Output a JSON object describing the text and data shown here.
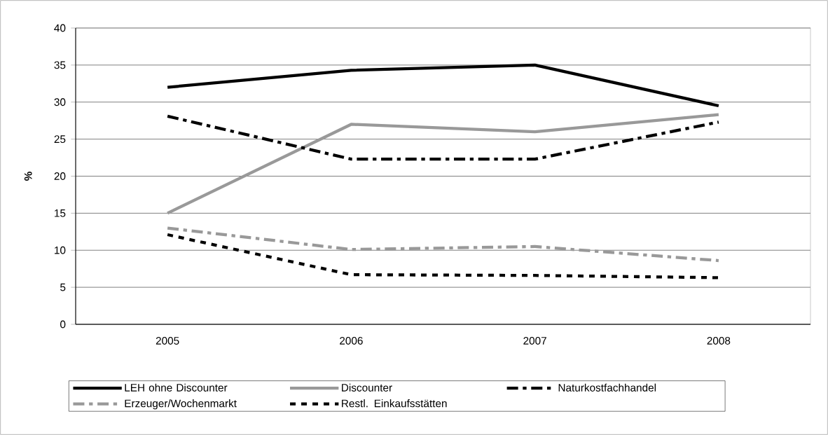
{
  "chart_data": {
    "type": "line",
    "ylabel": "%",
    "categories": [
      "2005",
      "2006",
      "2007",
      "2008"
    ],
    "series": [
      {
        "name": "LEH ohne Discounter",
        "color": "#000000",
        "line_style": "solid",
        "values": [
          32,
          34.3,
          35,
          29.5
        ]
      },
      {
        "name": "Discounter",
        "color": "#999999",
        "line_style": "solid",
        "values": [
          15,
          27,
          26,
          28.3
        ]
      },
      {
        "name": "Naturkostfachhandel",
        "color": "#000000",
        "line_style": "dashdot",
        "values": [
          28.1,
          22.3,
          22.3,
          27.3
        ]
      },
      {
        "name": "Erzeuger/Wochenmarkt",
        "color": "#999999",
        "line_style": "dashdot",
        "values": [
          13,
          10.1,
          10.5,
          8.6
        ]
      },
      {
        "name": "Restl. Einkaufsstätten",
        "color": "#000000",
        "line_style": "dotted",
        "values": [
          12.1,
          6.7,
          6.6,
          6.3
        ]
      }
    ],
    "ylim": [
      0,
      40
    ],
    "yticks": [
      0,
      5,
      10,
      15,
      20,
      25,
      30,
      35,
      40
    ],
    "grid": "y",
    "legend": "bottom",
    "marker": "none"
  }
}
